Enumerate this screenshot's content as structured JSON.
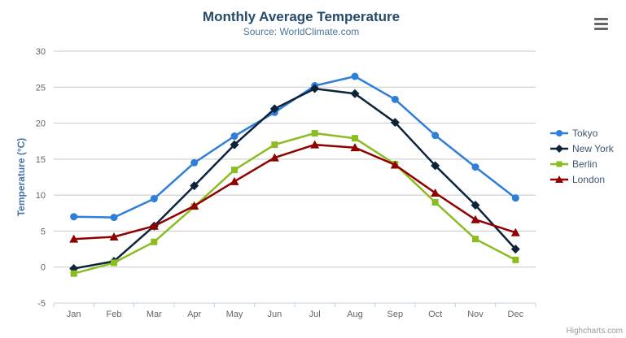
{
  "chart_data": {
    "type": "line",
    "title": "Monthly Average Temperature",
    "subtitle": "Source: WorldClimate.com",
    "xlabel": "",
    "ylabel": "Temperature (°C)",
    "categories": [
      "Jan",
      "Feb",
      "Mar",
      "Apr",
      "May",
      "Jun",
      "Jul",
      "Aug",
      "Sep",
      "Oct",
      "Nov",
      "Dec"
    ],
    "ylim": [
      -5,
      30
    ],
    "yticks": [
      -5,
      0,
      5,
      10,
      15,
      20,
      25,
      30
    ],
    "grid": true,
    "legend_position": "right",
    "series": [
      {
        "name": "Tokyo",
        "color": "#2f7ed8",
        "marker": "circle",
        "values": [
          7.0,
          6.9,
          9.5,
          14.5,
          18.2,
          21.5,
          25.2,
          26.5,
          23.3,
          18.3,
          13.9,
          9.6
        ]
      },
      {
        "name": "New York",
        "color": "#0d233a",
        "marker": "diamond",
        "values": [
          -0.2,
          0.8,
          5.7,
          11.3,
          17.0,
          22.0,
          24.8,
          24.1,
          20.1,
          14.1,
          8.6,
          2.5
        ]
      },
      {
        "name": "Berlin",
        "color": "#8bbc21",
        "marker": "square",
        "values": [
          -0.9,
          0.6,
          3.5,
          8.4,
          13.5,
          17.0,
          18.6,
          17.9,
          14.3,
          9.0,
          3.9,
          1.0
        ]
      },
      {
        "name": "London",
        "color": "#910000",
        "marker": "triangle",
        "values": [
          3.9,
          4.2,
          5.7,
          8.5,
          11.9,
          15.2,
          17.0,
          16.6,
          14.2,
          10.3,
          6.6,
          4.8
        ]
      }
    ],
    "colors": {
      "grid_line": "#c8c8c8",
      "axis_line": "#c0d0e0",
      "tick_label": "#666666",
      "title": "#274b6d",
      "subtitle": "#4d759e",
      "axis_title": "#4572a7",
      "legend_text": "#3e576f"
    }
  },
  "export_menu": {
    "icon": "hamburger-icon"
  },
  "credits": {
    "label": "Highcharts.com"
  }
}
